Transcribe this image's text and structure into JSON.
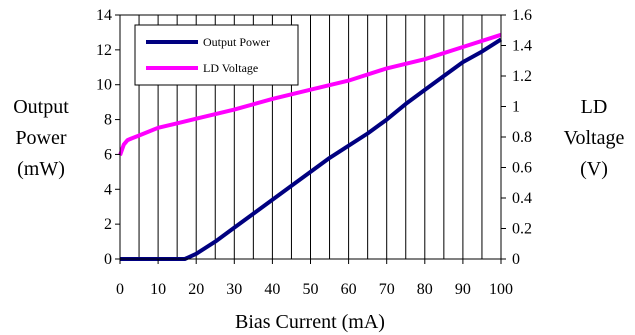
{
  "chart_data": {
    "type": "line",
    "title": "",
    "xlabel": "Bias Current (mA)",
    "ylabel_left": [
      "Output",
      "Power",
      "(mW)"
    ],
    "ylabel_right": [
      "LD",
      "Voltage",
      "(V)"
    ],
    "xlim": [
      0,
      100
    ],
    "ylim_left": [
      0,
      14
    ],
    "ylim_right": [
      0,
      1.6
    ],
    "x_ticks": [
      0,
      10,
      20,
      30,
      40,
      50,
      60,
      70,
      80,
      90,
      100
    ],
    "y_left_ticks": [
      0,
      2,
      4,
      6,
      8,
      10,
      12,
      14
    ],
    "y_right_ticks": [
      "0",
      "0.2",
      "0.4",
      "0.6",
      "0.8",
      "1",
      "1.2",
      "1.4",
      "1.6"
    ],
    "grid": "vertical",
    "legend_position": "top-left",
    "series": [
      {
        "name": "Output Power",
        "axis": "left",
        "color": "#000080",
        "x": [
          0,
          5,
          10,
          15,
          17,
          18,
          20,
          25,
          30,
          35,
          40,
          45,
          50,
          55,
          60,
          65,
          70,
          75,
          80,
          85,
          90,
          95,
          100
        ],
        "y": [
          0,
          0,
          0,
          0,
          0,
          0.1,
          0.3,
          1.0,
          1.8,
          2.6,
          3.4,
          4.2,
          5.0,
          5.8,
          6.5,
          7.2,
          8.0,
          8.9,
          9.7,
          10.5,
          11.3,
          11.9,
          12.6
        ]
      },
      {
        "name": "LD Voltage",
        "axis": "right",
        "color": "#FF00FF",
        "x": [
          0,
          1,
          2,
          3,
          5,
          10,
          15,
          20,
          30,
          40,
          50,
          60,
          70,
          80,
          90,
          100
        ],
        "y": [
          0.68,
          0.75,
          0.78,
          0.79,
          0.81,
          0.86,
          0.89,
          0.92,
          0.98,
          1.05,
          1.11,
          1.17,
          1.25,
          1.31,
          1.39,
          1.47
        ]
      }
    ]
  }
}
